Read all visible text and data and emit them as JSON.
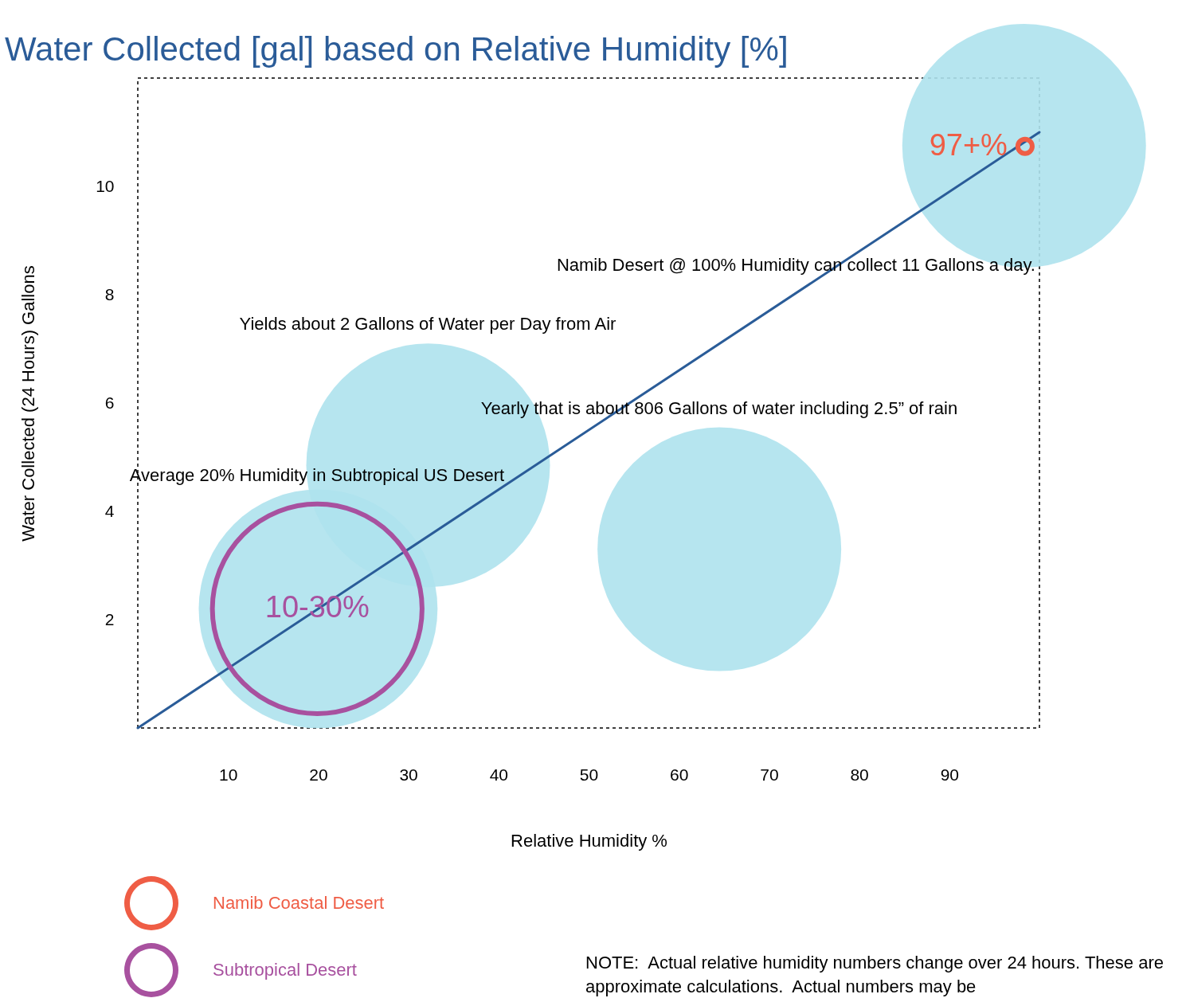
{
  "chart_data": {
    "type": "bubble",
    "title": "Water Collected [gal] based on Relative Humidity [%]",
    "xlabel": "Relative Humidity %",
    "ylabel": "Water Collected (24 Hours) Gallons",
    "xlim": [
      0,
      100
    ],
    "ylim": [
      0,
      12
    ],
    "xticks": [
      10,
      20,
      30,
      40,
      50,
      60,
      70,
      80,
      90
    ],
    "yticks": [
      2,
      4,
      6,
      8,
      10
    ],
    "legend": "bottom left",
    "series": [
      {
        "color": "#aee2ed",
        "marker": "circle",
        "x": [
          20,
          32.2,
          64.5,
          98.3
        ],
        "values": [
          2.2,
          4.85,
          3.3,
          10.75
        ],
        "sizes": [
          0.96,
          1,
          1,
          1
        ]
      },
      {
        "type": "line",
        "color": "#2a5c98",
        "x": [
          0,
          100
        ],
        "values": [
          0,
          11
        ]
      },
      {
        "name": "Namib Coastal Desert",
        "color": "#ef5d45",
        "marker": "circle",
        "x": [
          98.4
        ],
        "values": [
          10.74
        ],
        "sizes": [
          0.0035
        ]
      },
      {
        "name": "Subtropical Desert",
        "color": "#a8519f",
        "marker": "circle",
        "x": [
          19.9
        ],
        "values": [
          2.2
        ],
        "sizes": [
          0.74
        ]
      }
    ],
    "annotations": [
      {
        "text": "97+%",
        "x": 98.4,
        "y": 10.74
      },
      {
        "text": "10-30%",
        "x": 19.9,
        "y": 2.2
      },
      "Average 20% Humidity in Subtropical US Desert",
      "Yields about 2 Gallons of Water per Day from Air",
      "Yearly that is about 806 Gallons of water including 2.5” of rain",
      "Namib Desert @ 100% Humidity can collect 11 Gallons a day.",
      "NOTE:  Actual relative humidity numbers change over 24 hours. These are approximate calculations.  Actual numbers may be"
    ]
  }
}
